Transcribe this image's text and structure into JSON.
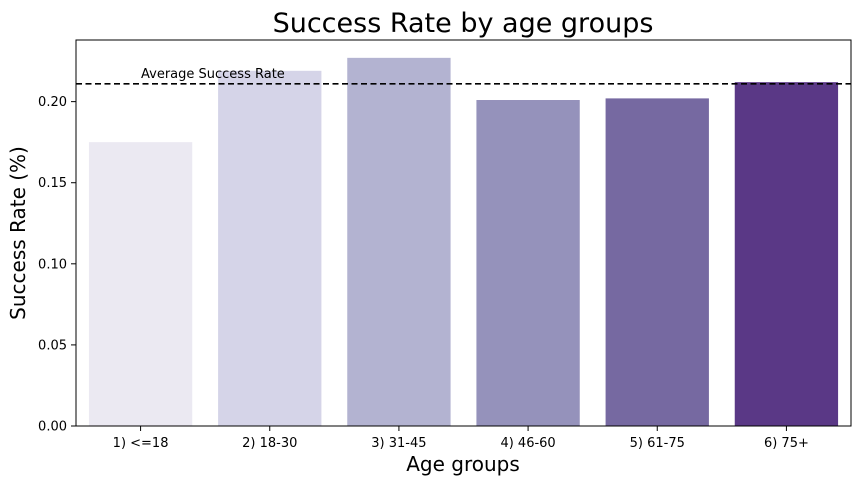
{
  "chart_data": {
    "type": "bar",
    "title": "Success Rate by age groups",
    "xlabel": "Age groups",
    "ylabel": "Success Rate (%)",
    "categories": [
      "1) <=18",
      "2) 18-30",
      "3) 31-45",
      "4) 46-60",
      "5) 61-75",
      "6) 75+"
    ],
    "values": [
      0.175,
      0.219,
      0.227,
      0.201,
      0.202,
      0.212
    ],
    "colors": [
      "#ebe9f2",
      "#d5d4e8",
      "#b3b3d1",
      "#9592bb",
      "#7669a1",
      "#5a3886"
    ],
    "ylim": [
      0,
      0.238
    ],
    "yticks": [
      0.0,
      0.05,
      0.1,
      0.15,
      0.2
    ],
    "ytick_labels": [
      "0.00",
      "0.05",
      "0.10",
      "0.15",
      "0.20"
    ],
    "reference_line": {
      "label": "Average Success Rate",
      "value": 0.211,
      "style": "dashed",
      "color": "#000000"
    },
    "grid": false,
    "legend": "none"
  }
}
